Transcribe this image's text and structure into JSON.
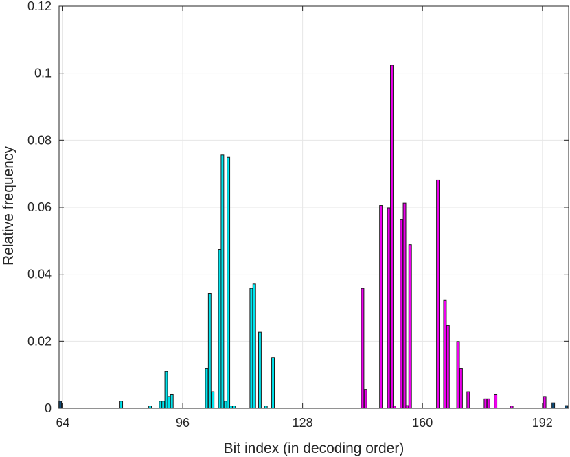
{
  "chart_data": {
    "type": "bar",
    "xlabel": "Bit index (in decoding order)",
    "ylabel": "Relative frequency",
    "xlim": [
      63,
      199
    ],
    "ylim": [
      0,
      0.12
    ],
    "grid": true,
    "legend": "none",
    "x_ticks": [
      {
        "value": 64,
        "label": "64"
      },
      {
        "value": 96,
        "label": "96"
      },
      {
        "value": 128,
        "label": "128"
      },
      {
        "value": 160,
        "label": "160"
      },
      {
        "value": 192,
        "label": "192"
      }
    ],
    "y_ticks": [
      {
        "value": 0,
        "label": "0"
      },
      {
        "value": 0.02,
        "label": "0.02"
      },
      {
        "value": 0.04,
        "label": "0.04"
      },
      {
        "value": 0.06,
        "label": "0.06"
      },
      {
        "value": 0.08,
        "label": "0.08"
      },
      {
        "value": 0.1,
        "label": "0.1"
      },
      {
        "value": 0.12,
        "label": "0.12"
      }
    ],
    "series": [
      {
        "color": "#0e4c7a",
        "bars": [
          {
            "x": 63.3,
            "y": 0.0021
          },
          {
            "x": 194.9,
            "y": 0.0016
          },
          {
            "x": 198.4,
            "y": 0.0008
          }
        ]
      },
      {
        "color": "#00e5ee",
        "bars": [
          {
            "x": 79.6,
            "y": 0.0021
          },
          {
            "x": 87.3,
            "y": 0.0007
          },
          {
            "x": 90.1,
            "y": 0.0021
          },
          {
            "x": 90.8,
            "y": 0.0021
          },
          {
            "x": 91.6,
            "y": 0.011
          },
          {
            "x": 92.4,
            "y": 0.0035
          },
          {
            "x": 93.1,
            "y": 0.0042
          },
          {
            "x": 102.4,
            "y": 0.0118
          },
          {
            "x": 103.2,
            "y": 0.0343
          },
          {
            "x": 104.0,
            "y": 0.0049
          },
          {
            "x": 105.9,
            "y": 0.0474
          },
          {
            "x": 106.6,
            "y": 0.0756
          },
          {
            "x": 107.4,
            "y": 0.0021
          },
          {
            "x": 108.2,
            "y": 0.0749
          },
          {
            "x": 108.9,
            "y": 0.0007
          },
          {
            "x": 109.7,
            "y": 0.0007
          },
          {
            "x": 114.3,
            "y": 0.0358
          },
          {
            "x": 115.1,
            "y": 0.0371
          },
          {
            "x": 116.6,
            "y": 0.0227
          },
          {
            "x": 118.2,
            "y": 0.0007
          },
          {
            "x": 120.1,
            "y": 0.0152
          }
        ]
      },
      {
        "color": "#ee00ee",
        "bars": [
          {
            "x": 144.0,
            "y": 0.0358
          },
          {
            "x": 144.8,
            "y": 0.0056
          },
          {
            "x": 148.9,
            "y": 0.0605
          },
          {
            "x": 151.0,
            "y": 0.0598
          },
          {
            "x": 151.8,
            "y": 0.1024
          },
          {
            "x": 152.5,
            "y": 0.0007
          },
          {
            "x": 154.4,
            "y": 0.0564
          },
          {
            "x": 155.2,
            "y": 0.0612
          },
          {
            "x": 155.9,
            "y": 0.0008
          },
          {
            "x": 156.7,
            "y": 0.0488
          },
          {
            "x": 164.1,
            "y": 0.0681
          },
          {
            "x": 166.0,
            "y": 0.0323
          },
          {
            "x": 166.8,
            "y": 0.0247
          },
          {
            "x": 169.5,
            "y": 0.0199
          },
          {
            "x": 170.3,
            "y": 0.0118
          },
          {
            "x": 172.2,
            "y": 0.0049
          },
          {
            "x": 176.8,
            "y": 0.0028
          },
          {
            "x": 177.6,
            "y": 0.0028
          },
          {
            "x": 179.5,
            "y": 0.0042
          },
          {
            "x": 183.8,
            "y": 0.0007
          },
          {
            "x": 192.6,
            "y": 0.0035
          }
        ]
      }
    ]
  }
}
